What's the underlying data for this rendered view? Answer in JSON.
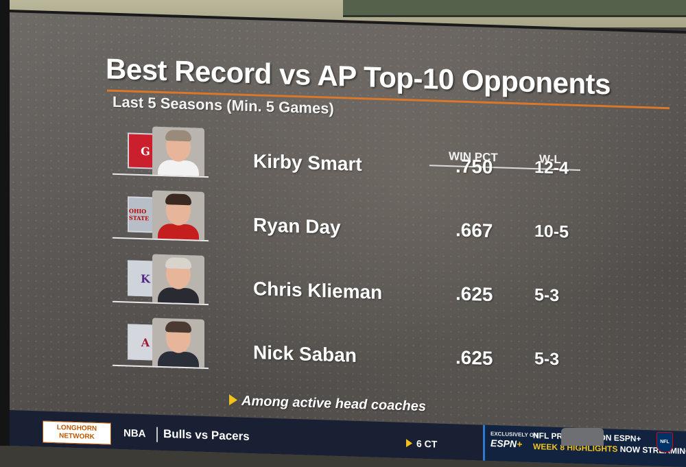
{
  "title": "Best Record vs AP Top-10 Opponents",
  "subtitle": "Last 5 Seasons (Min. 5 Games)",
  "columns": {
    "win_pct": "WIN PCT",
    "wl": "W-L"
  },
  "rows": [
    {
      "name": "Kirby Smart",
      "win_pct": ".750",
      "wl": "12-4",
      "logo_letter": "G",
      "logo_bg": "#cc1f2e",
      "logo_fg": "#ffffff",
      "hair": "#9a8a7a",
      "shirt": "#f2f2f2"
    },
    {
      "name": "Ryan Day",
      "win_pct": ".667",
      "wl": "10-5",
      "logo_letter": "OHIO STATE",
      "logo_bg": "#b8bec7",
      "logo_fg": "#bb0000",
      "hair": "#3a2a22",
      "shirt": "#c41e1e"
    },
    {
      "name": "Chris Klieman",
      "win_pct": ".625",
      "wl": "5-3",
      "logo_letter": "K",
      "logo_bg": "#cfd3da",
      "logo_fg": "#512888",
      "hair": "#d8d4cc",
      "shirt": "#2a2a33"
    },
    {
      "name": "Nick Saban",
      "win_pct": ".625",
      "wl": "5-3",
      "logo_letter": "A",
      "logo_bg": "#d4d8de",
      "logo_fg": "#9e1b32",
      "hair": "#4a3a32",
      "shirt": "#2b2f3a"
    }
  ],
  "footnote": "Among active head coaches",
  "ticker": {
    "network": "LONGHORN NETWORK",
    "league": "NBA",
    "game": "Bulls vs Pacers",
    "time": "6 CT",
    "promo": {
      "exclusive": "EXCLUSIVELY ON",
      "espn": "ESPN",
      "espn_plus": "+",
      "line1": "NFL PRIMETIME ON ESPN+",
      "line2": "WEEK 8 HIGHLIGHTS",
      "line2b": "NOW STREAMING",
      "badge": "NFL"
    }
  },
  "colors": {
    "accent": "#d9782a",
    "ticker_bg": "#1a2033",
    "arrow": "#f2c21b"
  }
}
